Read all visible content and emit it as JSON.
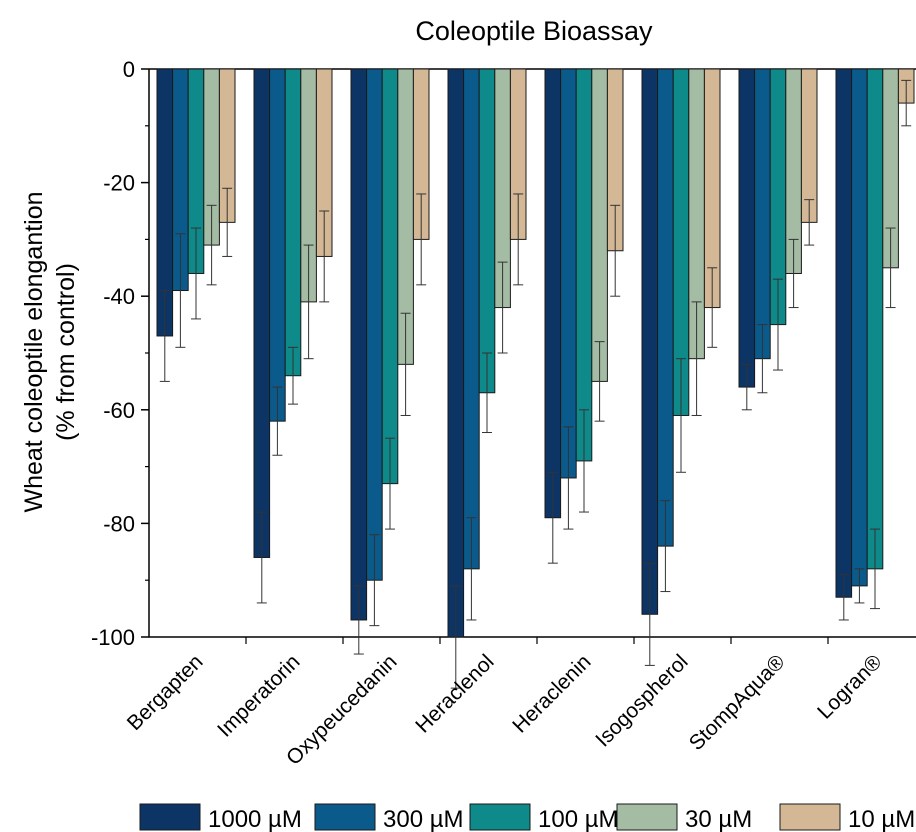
{
  "chart_data": {
    "type": "bar",
    "title": "Coleoptile Bioassay",
    "ylabel_line1": "Wheat coleoptile elongantion",
    "ylabel_line2": "(% from control)",
    "xlabel": "",
    "ylim": [
      -100,
      0
    ],
    "yticks": [
      "0",
      "-20",
      "-40",
      "-60",
      "-80",
      "-100"
    ],
    "ytick_values": [
      0,
      -20,
      -40,
      -60,
      -80,
      -100
    ],
    "legend_position": "bottom",
    "categories": [
      "Bergapten",
      "Imperatorin",
      "Oxypeucedanin",
      "Heraclenol",
      "Heraclenin",
      "Isogospherol",
      "StompAqua®",
      "Logran®"
    ],
    "series": [
      {
        "name": "1000 µM",
        "color": "#0c3566",
        "values": [
          -47,
          -86,
          -97,
          -100,
          -79,
          -96,
          -56,
          -93
        ],
        "errors": [
          8,
          8,
          6,
          9,
          8,
          9,
          4,
          4
        ]
      },
      {
        "name": "300 µM",
        "color": "#0b5a8c",
        "values": [
          -39,
          -62,
          -90,
          -88,
          -72,
          -84,
          -51,
          -91
        ],
        "errors": [
          10,
          6,
          8,
          9,
          9,
          8,
          6,
          3
        ]
      },
      {
        "name": "100 µM",
        "color": "#0f8a8a",
        "values": [
          -36,
          -54,
          -73,
          -57,
          -69,
          -61,
          -45,
          -88
        ],
        "errors": [
          8,
          5,
          8,
          7,
          9,
          10,
          8,
          7
        ]
      },
      {
        "name": "30 µM",
        "color": "#a4bca4",
        "values": [
          -31,
          -41,
          -52,
          -42,
          -55,
          -51,
          -36,
          -35
        ],
        "errors": [
          7,
          10,
          9,
          8,
          7,
          10,
          6,
          7
        ]
      },
      {
        "name": "10 µM",
        "color": "#d4b896",
        "values": [
          -27,
          -33,
          -30,
          -30,
          -32,
          -42,
          -27,
          -6
        ],
        "errors": [
          6,
          8,
          8,
          8,
          8,
          7,
          4,
          4
        ]
      }
    ]
  }
}
